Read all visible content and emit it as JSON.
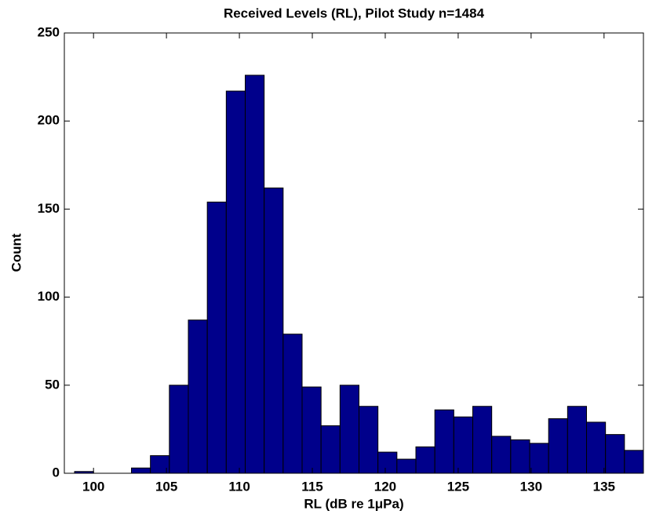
{
  "chart_data": {
    "type": "histogram",
    "title": "Received Levels (RL), Pilot Study n=1484",
    "xlabel": "RL (dB re 1μPa)",
    "ylabel": "Count",
    "bins": [
      98.7,
      100,
      101.3,
      102.6,
      103.9,
      105.2,
      106.5,
      107.8,
      109.1,
      110.4,
      111.7,
      113,
      114.3,
      115.6,
      116.9,
      118.2,
      119.5,
      120.8,
      122.1,
      123.4,
      124.7,
      126,
      127.3,
      128.6,
      129.9,
      131.2,
      132.5,
      133.8,
      135.1,
      136.4,
      137.7
    ],
    "values": [
      1,
      0,
      0,
      3,
      10,
      50,
      87,
      154,
      217,
      226,
      162,
      79,
      49,
      27,
      50,
      38,
      12,
      8,
      15,
      36,
      32,
      38,
      21,
      19,
      17,
      31,
      38,
      29,
      22,
      13
    ],
    "color": "#00008b",
    "xlim": [
      98,
      137.7
    ],
    "xticks": [
      100,
      105,
      110,
      115,
      120,
      125,
      130,
      135
    ],
    "ylim": [
      0,
      250
    ],
    "yticks": [
      0,
      50,
      100,
      150,
      200,
      250
    ]
  }
}
